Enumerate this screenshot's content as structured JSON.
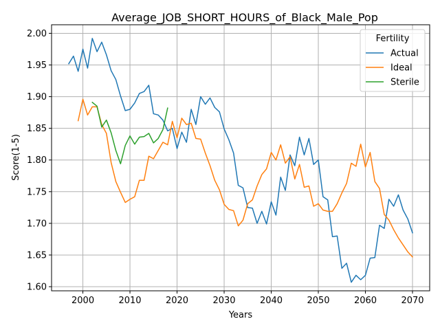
{
  "chart_data": {
    "type": "line",
    "title": "Average_JOB_SHORT_HOURS_of_Black_Male_Pop",
    "xlabel": "Years",
    "ylabel": "Score(1-5)",
    "xlim": [
      1993.35,
      2073.65
    ],
    "ylim": [
      1.5935,
      2.0135
    ],
    "xticks": [
      2000,
      2010,
      2020,
      2030,
      2040,
      2050,
      2060,
      2070
    ],
    "yticks": [
      1.6,
      1.65,
      1.7,
      1.75,
      1.8,
      1.85,
      1.9,
      1.95,
      2.0
    ],
    "xtick_labels": [
      "2000",
      "2010",
      "2020",
      "2030",
      "2040",
      "2050",
      "2060",
      "2070"
    ],
    "ytick_labels": [
      "1.60",
      "1.65",
      "1.70",
      "1.75",
      "1.80",
      "1.85",
      "1.90",
      "1.95",
      "2.00"
    ],
    "grid": true,
    "legend": {
      "title": "Fertility",
      "placement": "top-right"
    },
    "series": [
      {
        "name": "Actual",
        "color": "#1f77b4",
        "x": [
          1997,
          1998,
          1999,
          2000,
          2001,
          2002,
          2003,
          2004,
          2005,
          2006,
          2007,
          2008,
          2009,
          2010,
          2011,
          2012,
          2013,
          2014,
          2015,
          2016,
          2017,
          2018,
          2019,
          2020,
          2021,
          2022,
          2023,
          2024,
          2025,
          2026,
          2027,
          2028,
          2029,
          2030,
          2031,
          2032,
          2033,
          2034,
          2035,
          2036,
          2037,
          2038,
          2039,
          2040,
          2041,
          2042,
          2043,
          2044,
          2045,
          2046,
          2047,
          2048,
          2049,
          2050,
          2051,
          2052,
          2053,
          2054,
          2055,
          2056,
          2057,
          2058,
          2059,
          2060,
          2061,
          2062,
          2063,
          2064,
          2065,
          2066,
          2067,
          2068,
          2069,
          2070
        ],
        "values": [
          1.952,
          1.964,
          1.94,
          1.975,
          1.945,
          1.992,
          1.971,
          1.986,
          1.966,
          1.941,
          1.927,
          1.901,
          1.878,
          1.88,
          1.89,
          1.905,
          1.908,
          1.918,
          1.873,
          1.871,
          1.863,
          1.846,
          1.85,
          1.818,
          1.844,
          1.828,
          1.88,
          1.856,
          1.9,
          1.888,
          1.898,
          1.883,
          1.876,
          1.849,
          1.832,
          1.811,
          1.76,
          1.756,
          1.725,
          1.724,
          1.7,
          1.719,
          1.699,
          1.734,
          1.713,
          1.773,
          1.752,
          1.808,
          1.791,
          1.836,
          1.808,
          1.834,
          1.793,
          1.8,
          1.742,
          1.737,
          1.679,
          1.68,
          1.629,
          1.637,
          1.607,
          1.618,
          1.611,
          1.618,
          1.645,
          1.646,
          1.697,
          1.692,
          1.738,
          1.727,
          1.745,
          1.721,
          1.707,
          1.685
        ]
      },
      {
        "name": "Ideal",
        "color": "#ff7f0e",
        "x": [
          1999,
          2000,
          2001,
          2002,
          2003,
          2004,
          2005,
          2006,
          2007,
          2008,
          2009,
          2010,
          2011,
          2012,
          2013,
          2014,
          2015,
          2016,
          2017,
          2018,
          2019,
          2020,
          2021,
          2022,
          2023,
          2024,
          2025,
          2026,
          2027,
          2028,
          2029,
          2030,
          2031,
          2032,
          2033,
          2034,
          2035,
          2036,
          2037,
          2038,
          2039,
          2040,
          2041,
          2042,
          2043,
          2044,
          2045,
          2046,
          2047,
          2048,
          2049,
          2050,
          2051,
          2052,
          2053,
          2054,
          2055,
          2056,
          2057,
          2058,
          2059,
          2060,
          2061,
          2062,
          2063,
          2064,
          2065,
          2066,
          2067,
          2068,
          2069,
          2070
        ],
        "values": [
          1.862,
          1.896,
          1.871,
          1.884,
          1.884,
          1.856,
          1.842,
          1.796,
          1.766,
          1.749,
          1.733,
          1.738,
          1.742,
          1.768,
          1.768,
          1.806,
          1.802,
          1.815,
          1.828,
          1.824,
          1.861,
          1.835,
          1.866,
          1.856,
          1.858,
          1.834,
          1.833,
          1.811,
          1.791,
          1.768,
          1.753,
          1.73,
          1.722,
          1.72,
          1.696,
          1.705,
          1.731,
          1.737,
          1.759,
          1.777,
          1.786,
          1.812,
          1.8,
          1.824,
          1.795,
          1.805,
          1.77,
          1.793,
          1.757,
          1.759,
          1.727,
          1.731,
          1.721,
          1.719,
          1.719,
          1.731,
          1.748,
          1.763,
          1.795,
          1.79,
          1.825,
          1.789,
          1.812,
          1.766,
          1.755,
          1.714,
          1.705,
          1.69,
          1.677,
          1.666,
          1.655,
          1.647
        ]
      },
      {
        "name": "Sterile",
        "color": "#2ca02c",
        "x": [
          2002,
          2003,
          2004,
          2005,
          2006,
          2007,
          2008,
          2009,
          2010,
          2011,
          2012,
          2013,
          2014,
          2015,
          2016,
          2017,
          2018
        ],
        "values": [
          1.891,
          1.885,
          1.852,
          1.863,
          1.843,
          1.815,
          1.794,
          1.823,
          1.838,
          1.825,
          1.836,
          1.837,
          1.842,
          1.827,
          1.834,
          1.848,
          1.882
        ]
      }
    ]
  }
}
